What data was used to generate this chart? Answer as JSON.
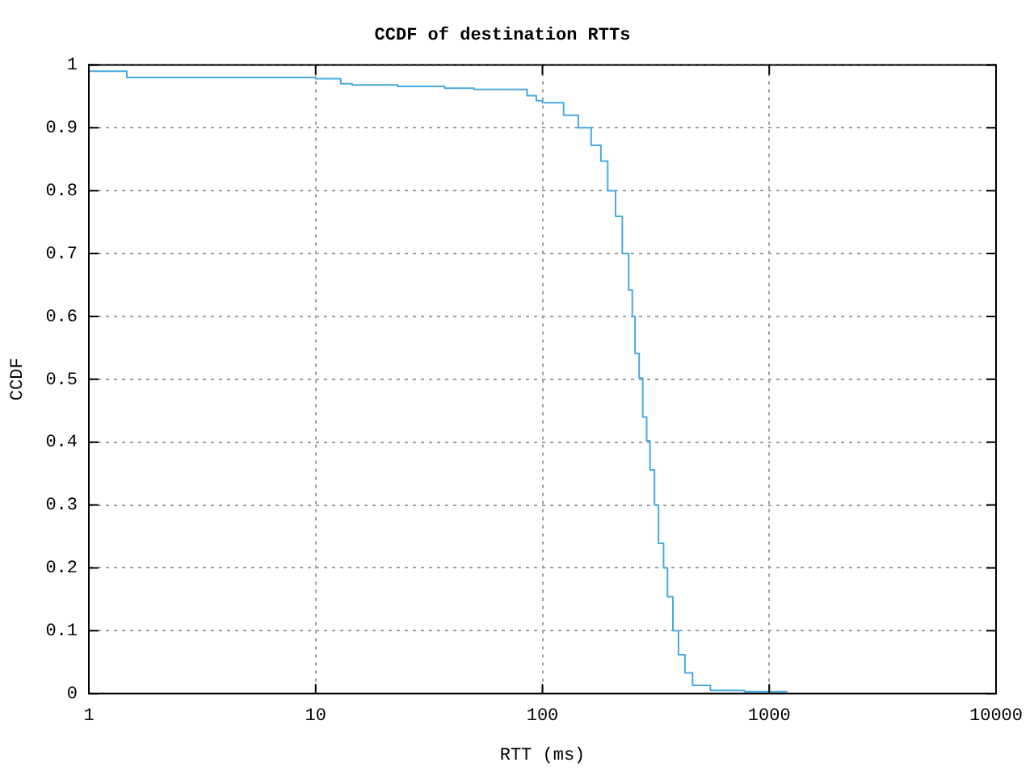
{
  "chart_data": {
    "type": "step",
    "title": "CCDF of destination RTTs",
    "xlabel": "RTT (ms)",
    "ylabel": "CCDF",
    "log": "x",
    "grid": true,
    "color": "#49a9e0",
    "x": [
      1,
      1.47,
      10,
      12.9,
      14.5,
      23,
      37,
      50,
      85.5,
      94,
      100,
      124,
      144,
      164,
      181,
      194,
      210,
      225,
      240,
      249,
      256,
      267,
      277,
      288,
      298,
      312,
      325,
      342,
      356,
      376,
      398,
      425,
      459,
      550,
      778,
      1195
    ],
    "values": [
      0.99,
      0.98,
      0.978,
      0.97,
      0.968,
      0.966,
      0.963,
      0.961,
      0.951,
      0.943,
      0.94,
      0.92,
      0.9,
      0.872,
      0.847,
      0.8,
      0.759,
      0.7,
      0.642,
      0.6,
      0.541,
      0.502,
      0.44,
      0.402,
      0.356,
      0.3,
      0.239,
      0.2,
      0.154,
      0.1,
      0.062,
      0.033,
      0.013,
      0.005,
      0.003,
      0.002
    ],
    "xlim": [
      1,
      10000
    ],
    "xticks": [
      1,
      10,
      100,
      1000,
      10000
    ],
    "ylim": [
      0,
      1
    ],
    "yticks": [
      0,
      0.1,
      0.2,
      0.3,
      0.4,
      0.5,
      0.6,
      0.7,
      0.8,
      0.9,
      1
    ]
  }
}
